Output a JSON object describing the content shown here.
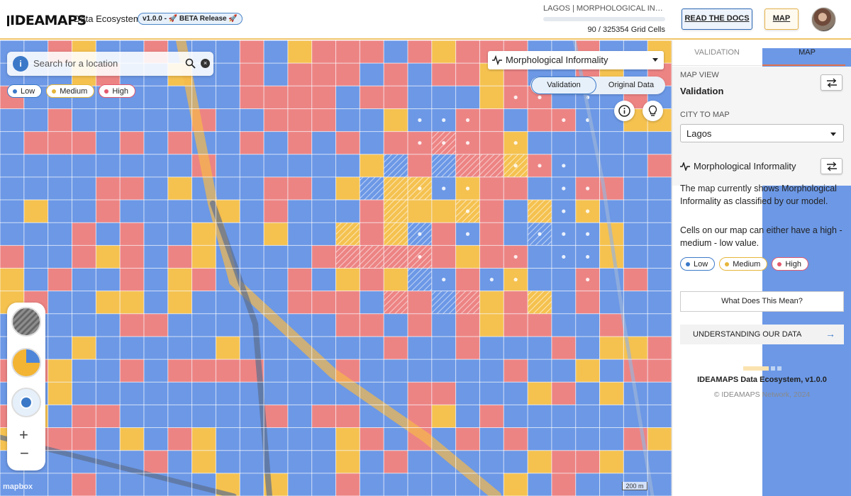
{
  "header": {
    "logo_text": "IDEAMAPS",
    "subtitle": "Data Ecosystem",
    "version_badge": "v1.0.0 - 🚀 BETA Release 🚀",
    "status_city": "LAGOS | MORPHOLOGICAL INFORMALITY",
    "grid_count": "90 / 325354 Grid Cells",
    "docs_button": "READ THE DOCS",
    "map_button": "MAP"
  },
  "map": {
    "search_placeholder": "Search for a location",
    "legend": [
      "Low",
      "Medium",
      "High"
    ],
    "layer_select": "Morphological Informality",
    "toggle": {
      "validation": "Validation",
      "original": "Original Data"
    },
    "attribution": "mapbox",
    "scale": "200 m",
    "zoom_in": "+",
    "zoom_out": "−",
    "info_marker": "i",
    "clear_icon": "×"
  },
  "colors": {
    "low": "#6c98e6",
    "medium": "#f5c250",
    "high": "#ed8484",
    "accent_blue": "#3b79c8",
    "accent_orange": "#e4724a"
  },
  "sidebar": {
    "tabs": [
      "VALIDATION",
      "MAP"
    ],
    "map_view_label": "MAP VIEW",
    "map_view_value": "Validation",
    "city_label": "CITY TO MAP",
    "city_value": "Lagos",
    "layer_title": "Morphological Informality",
    "desc1": "The map currently shows Morphological Informality as classified by our model.",
    "desc2": "Cells on our map can either have a high - medium - low value.",
    "legend": [
      "Low",
      "Medium",
      "High"
    ],
    "what_button": "What Does This Mean?",
    "understanding_button": "UNDERSTANDING OUR DATA",
    "footer_title": "IDEAMAPS Data Ecosystem, v1.0.0",
    "footer_copy": "© IDEAMAPS Network, 2024"
  }
}
